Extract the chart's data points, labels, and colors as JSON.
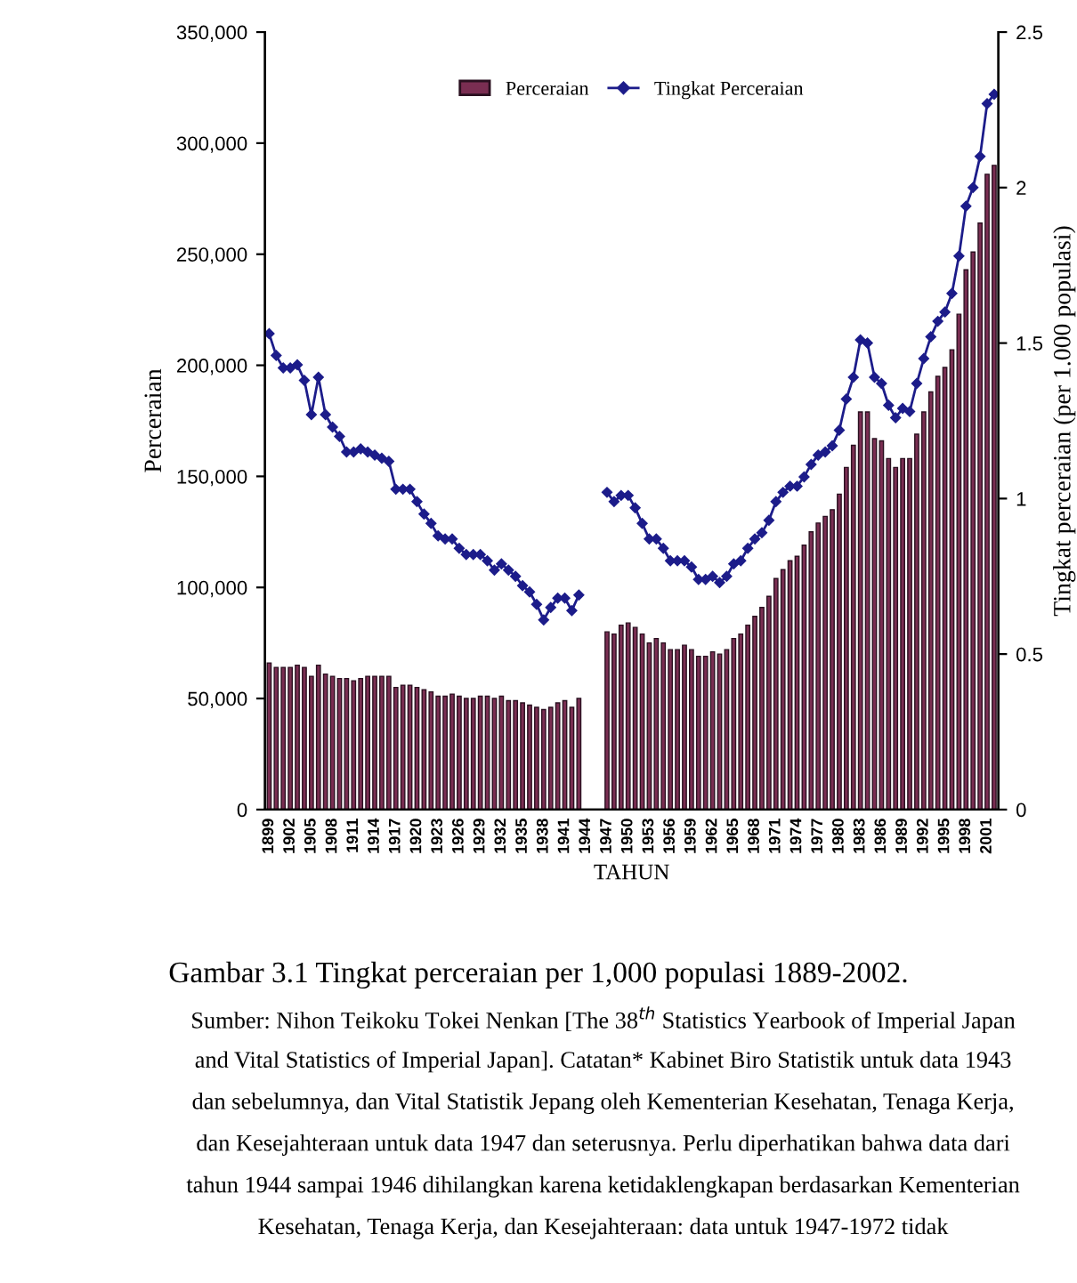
{
  "chart_data": {
    "type": "bar",
    "categories": [
      "1899",
      null,
      null,
      "1902",
      null,
      null,
      "1905",
      null,
      null,
      "1908",
      null,
      null,
      "1911",
      null,
      null,
      "1914",
      null,
      null,
      "1917",
      null,
      null,
      "1920",
      null,
      null,
      "1923",
      null,
      null,
      "1926",
      null,
      null,
      "1929",
      null,
      null,
      "1932",
      null,
      null,
      "1935",
      null,
      null,
      "1938",
      null,
      null,
      "1941",
      null,
      null,
      "1944",
      null,
      null,
      "1947",
      null,
      null,
      "1950",
      null,
      null,
      "1953",
      null,
      null,
      "1956",
      null,
      null,
      "1959",
      null,
      null,
      "1962",
      null,
      null,
      "1965",
      null,
      null,
      "1968",
      null,
      null,
      "1971",
      null,
      null,
      "1974",
      null,
      null,
      "1977",
      null,
      null,
      "1980",
      null,
      null,
      "1983",
      null,
      null,
      "1986",
      null,
      null,
      "1989",
      null,
      null,
      "1992",
      null,
      null,
      "1995",
      null,
      null,
      "1998",
      null,
      null,
      "2001",
      null
    ],
    "series": [
      {
        "name": "Perceraian",
        "color": "#7a2e52",
        "values": [
          66000,
          64000,
          64000,
          64000,
          65000,
          64000,
          60000,
          65000,
          61000,
          60000,
          59000,
          59000,
          58000,
          59000,
          60000,
          60000,
          60000,
          60000,
          55000,
          56000,
          56000,
          55000,
          54000,
          53000,
          51000,
          51000,
          52000,
          51000,
          50000,
          50000,
          51000,
          51000,
          50000,
          51000,
          49000,
          49000,
          48000,
          47000,
          46000,
          45000,
          46000,
          48000,
          49000,
          46000,
          50000,
          null,
          null,
          null,
          80000,
          79000,
          83000,
          84000,
          82000,
          79000,
          75000,
          77000,
          75000,
          72000,
          72000,
          74000,
          72000,
          69000,
          69000,
          71000,
          70000,
          72000,
          77000,
          79000,
          83000,
          87000,
          91000,
          96000,
          104000,
          108000,
          112000,
          114000,
          119000,
          125000,
          129000,
          132000,
          135000,
          142000,
          154000,
          164000,
          179000,
          179000,
          167000,
          166000,
          158000,
          154000,
          158000,
          158000,
          169000,
          179000,
          188000,
          195000,
          199000,
          207000,
          223000,
          243000,
          251000,
          264000,
          286000,
          290000
        ]
      },
      {
        "name": "Tingkat Perceraian",
        "type": "line",
        "axis": "y2",
        "color": "#1c1c8a",
        "values": [
          1.53,
          1.46,
          1.42,
          1.42,
          1.43,
          1.38,
          1.27,
          1.39,
          1.27,
          1.23,
          1.2,
          1.15,
          1.15,
          1.16,
          1.15,
          1.14,
          1.13,
          1.12,
          1.03,
          1.03,
          1.03,
          0.99,
          0.95,
          0.92,
          0.88,
          0.87,
          0.87,
          0.84,
          0.82,
          0.82,
          0.82,
          0.8,
          0.77,
          0.79,
          0.77,
          0.75,
          0.72,
          0.7,
          0.66,
          0.61,
          0.65,
          0.68,
          0.68,
          0.64,
          0.69,
          null,
          null,
          null,
          1.02,
          0.99,
          1.01,
          1.01,
          0.97,
          0.92,
          0.87,
          0.87,
          0.84,
          0.8,
          0.8,
          0.8,
          0.78,
          0.74,
          0.74,
          0.75,
          0.73,
          0.75,
          0.79,
          0.8,
          0.84,
          0.87,
          0.89,
          0.93,
          0.99,
          1.02,
          1.04,
          1.04,
          1.07,
          1.11,
          1.14,
          1.15,
          1.17,
          1.22,
          1.32,
          1.39,
          1.51,
          1.5,
          1.39,
          1.37,
          1.3,
          1.26,
          1.29,
          1.28,
          1.37,
          1.45,
          1.52,
          1.57,
          1.6,
          1.66,
          1.78,
          1.94,
          2.0,
          2.1,
          2.27,
          2.3
        ]
      }
    ],
    "xlabel": "TAHUN",
    "ylabel": "Perceraian",
    "y2label": "Tingkat perceraian (per 1.000 populasi)",
    "ylim": [
      0,
      350000
    ],
    "yticks": [
      {
        "value": 0,
        "label": "0"
      },
      {
        "value": 50000,
        "label": "50,000"
      },
      {
        "value": 100000,
        "label": "100,000"
      },
      {
        "value": 150000,
        "label": "150,000"
      },
      {
        "value": 200000,
        "label": "200,000"
      },
      {
        "value": 250000,
        "label": "250,000"
      },
      {
        "value": 300000,
        "label": "300,000"
      },
      {
        "value": 350000,
        "label": "350,000"
      }
    ],
    "y2lim": [
      0,
      2.5
    ],
    "y2ticks": [
      0,
      0.5,
      1,
      1.5,
      2,
      2.5
    ],
    "marker": "diamond",
    "legend": "top",
    "grid": false,
    "annotations": [
      "Gambar 3.1 Tingkat perceraian per 1,000 populasi 1889-2002.",
      "Sumber: Nihon Teikoku Tokei Nenkan [The 38$^{th}$ Statistics Yearbook of Imperial Japan",
      "and Vital Statistics of Imperial Japan]. Catatan* Kabinet Biro Statistik untuk data 1943",
      "dan sebelumnya, dan Vital Statistik Jepang oleh Kementerian Kesehatan, Tenaga Kerja,",
      "dan Kesejahteraan untuk data 1947 dan seterusnya. Perlu diperhatikan bahwa data dari",
      "tahun 1944 sampai 1946 dihilangkan karena ketidaklengkapan berdasarkan Kementerian",
      "Kesehatan, Tenaga Kerja, dan Kesejahteraan: data untuk 1947-1972 tidak"
    ]
  }
}
